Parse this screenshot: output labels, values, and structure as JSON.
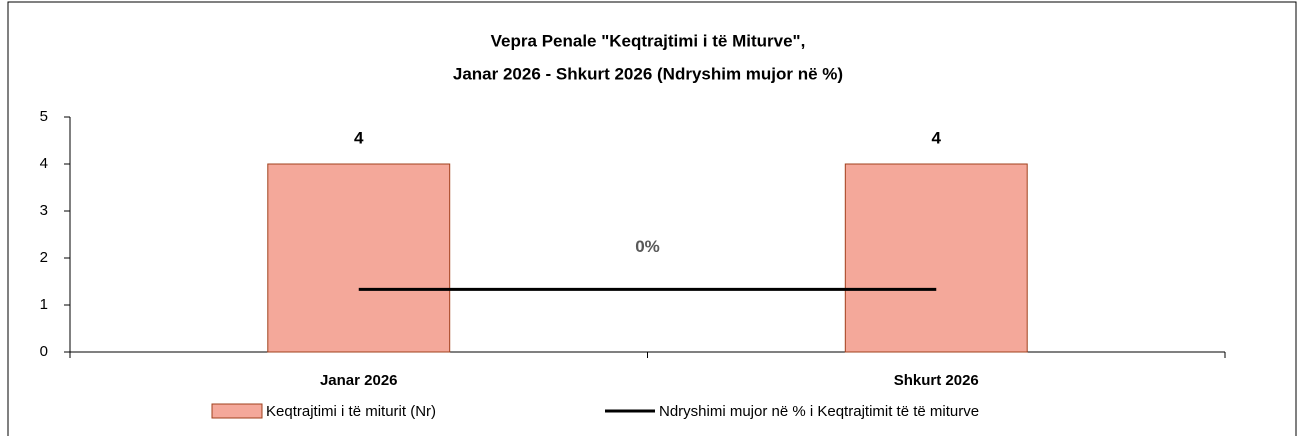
{
  "chart_data": {
    "type": "bar",
    "title": [
      "Vepra Penale \"Keqtrajtimi i të Miturve\",",
      "Janar 2026 - Shkurt 2026 (Ndryshim mujor në %)"
    ],
    "categories": [
      "Janar 2026",
      "Shkurt 2026"
    ],
    "series": [
      {
        "name": "Keqtrajtimi i të miturit (Nr)",
        "type": "bar",
        "color": "#f4a89a",
        "edge_color": "#a0401c",
        "values": [
          4,
          4
        ]
      },
      {
        "name": "Ndryshimi mujor në % i Keqtrajtimit të të miturve",
        "type": "line",
        "axis": "y2",
        "color": "#000000",
        "values": [
          0,
          0
        ],
        "label": "0%"
      }
    ],
    "ylim": [
      0,
      5
    ],
    "yticks": [
      0,
      1,
      2,
      3,
      4,
      5
    ],
    "y2lim": [
      -0.4,
      1.1
    ],
    "legend": "bottom"
  }
}
